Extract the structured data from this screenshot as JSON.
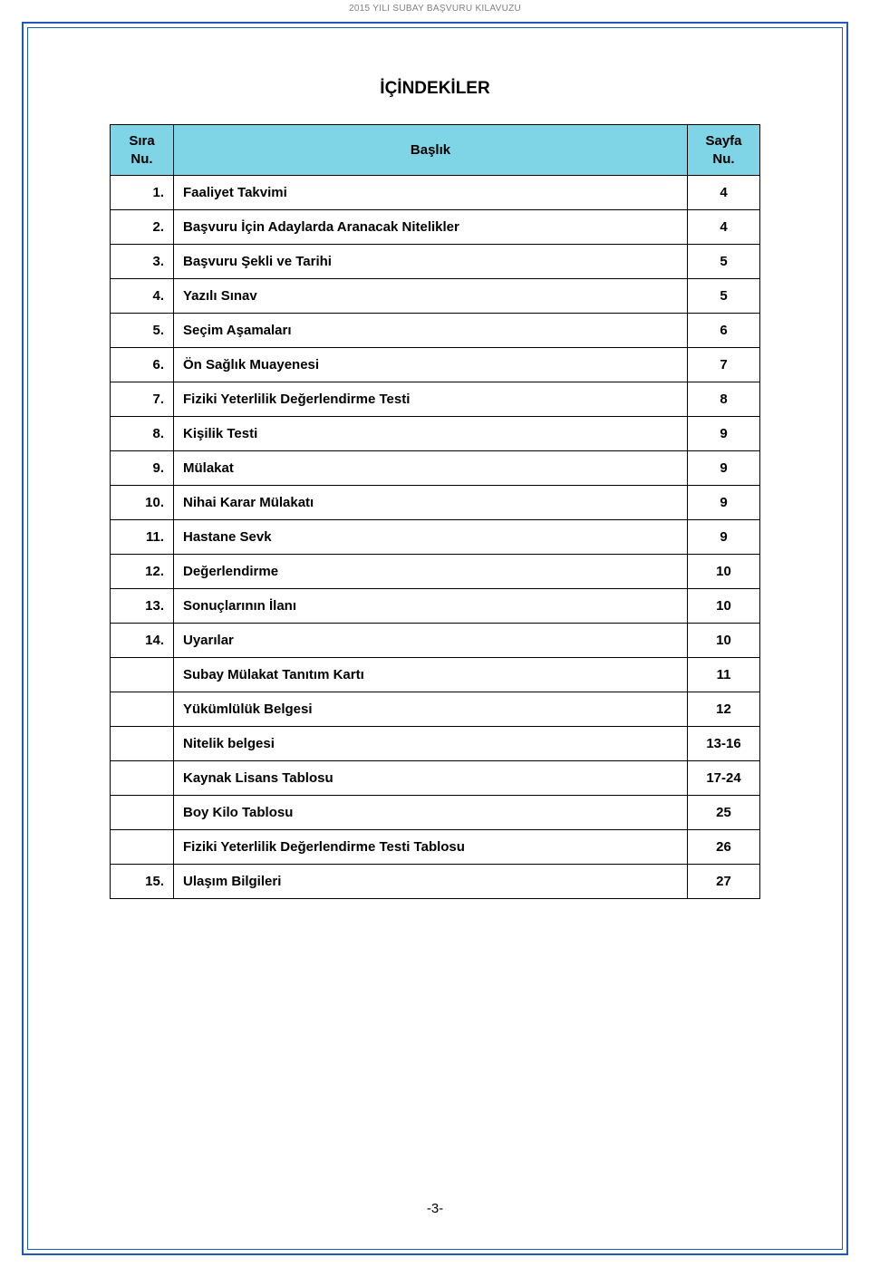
{
  "header_text": "2015 YILI SUBAY BAŞVURU KILAVUZU",
  "title": "İÇİNDEKİLER",
  "columns": {
    "sira_line1": "Sıra",
    "sira_line2": "Nu.",
    "baslik": "Başlık",
    "sayfa_line1": "Sayfa",
    "sayfa_line2": "Nu."
  },
  "rows": [
    {
      "no": "1.",
      "title": "Faaliyet Takvimi",
      "page": "4"
    },
    {
      "no": "2.",
      "title": "Başvuru İçin Adaylarda Aranacak Nitelikler",
      "page": "4"
    },
    {
      "no": "3.",
      "title": "Başvuru Şekli ve Tarihi",
      "page": "5"
    },
    {
      "no": "4.",
      "title": "Yazılı Sınav",
      "page": "5"
    },
    {
      "no": "5.",
      "title": "Seçim Aşamaları",
      "page": "6"
    },
    {
      "no": "6.",
      "title": "Ön Sağlık Muayenesi",
      "page": "7"
    },
    {
      "no": "7.",
      "title": "Fiziki Yeterlilik Değerlendirme Testi",
      "page": "8"
    },
    {
      "no": "8.",
      "title": "Kişilik Testi",
      "page": "9"
    },
    {
      "no": "9.",
      "title": "Mülakat",
      "page": "9"
    },
    {
      "no": "10.",
      "title": "Nihai Karar Mülakatı",
      "page": "9"
    },
    {
      "no": "11.",
      "title": "Hastane Sevk",
      "page": "9"
    },
    {
      "no": "12.",
      "title": "Değerlendirme",
      "page": "10"
    },
    {
      "no": "13.",
      "title": "Sonuçlarının İlanı",
      "page": "10"
    },
    {
      "no": "14.",
      "title": "Uyarılar",
      "page": "10"
    },
    {
      "no": "",
      "title": "Subay Mülakat Tanıtım Kartı",
      "page": "11"
    },
    {
      "no": "",
      "title": "Yükümlülük Belgesi",
      "page": "12"
    },
    {
      "no": "",
      "title": "Nitelik belgesi",
      "page": "13-16"
    },
    {
      "no": "",
      "title": "Kaynak Lisans Tablosu",
      "page": "17-24"
    },
    {
      "no": "",
      "title": "Boy Kilo Tablosu",
      "page": "25"
    },
    {
      "no": "",
      "title": "Fiziki Yeterlilik Değerlendirme Testi Tablosu",
      "page": "26"
    },
    {
      "no": "15.",
      "title": "Ulaşım Bilgileri",
      "page": "27"
    }
  ],
  "page_number": "-3-",
  "colors": {
    "border_blue": "#1e5bb8",
    "header_bg": "#7fd4e6",
    "text": "#000000",
    "header_gray": "#808080"
  }
}
